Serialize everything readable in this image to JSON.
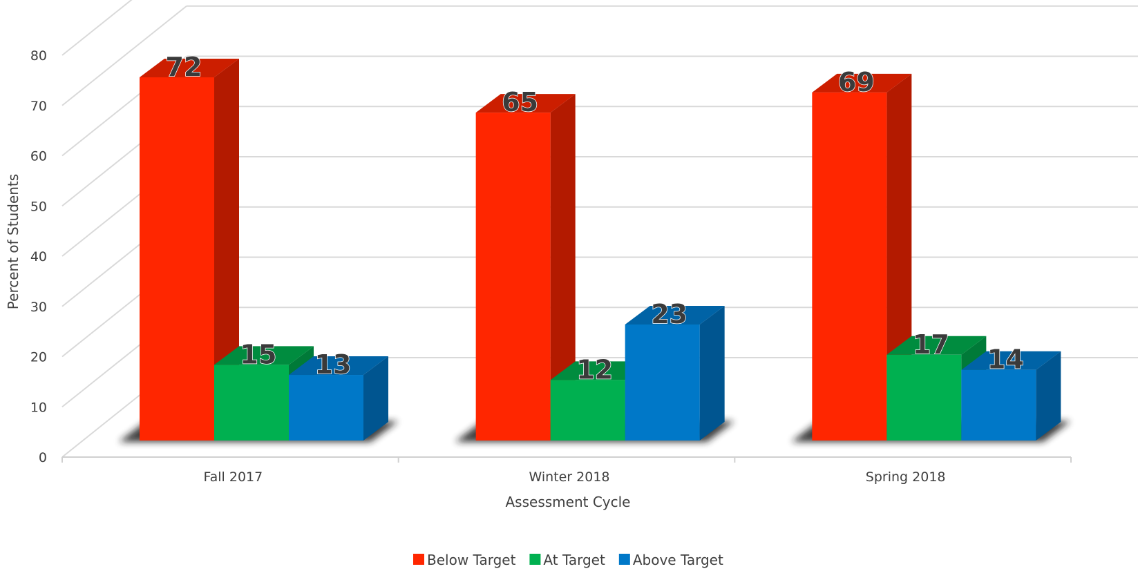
{
  "chart_data": {
    "type": "bar",
    "categories": [
      "Fall 2017",
      "Winter 2018",
      "Spring 2018"
    ],
    "series": [
      {
        "name": "Below Target",
        "values": [
          72,
          65,
          69
        ],
        "color": "#ff2600",
        "side_color": "#b31a00",
        "top_color": "#cc1e00"
      },
      {
        "name": "At Target",
        "values": [
          15,
          12,
          17
        ],
        "color": "#00b050",
        "side_color": "#007a38",
        "top_color": "#008c3f"
      },
      {
        "name": "Above Target",
        "values": [
          13,
          23,
          14
        ],
        "color": "#0078c8",
        "side_color": "#005590",
        "top_color": "#0063a6"
      }
    ],
    "xlabel": "Assessment Cycle",
    "ylabel": "Percent of Students",
    "ylim": [
      0,
      80
    ],
    "yticks": [
      0,
      10,
      20,
      30,
      40,
      50,
      60,
      70,
      80
    ],
    "grid": true,
    "legend_position": "bottom",
    "style": "3d-column"
  }
}
